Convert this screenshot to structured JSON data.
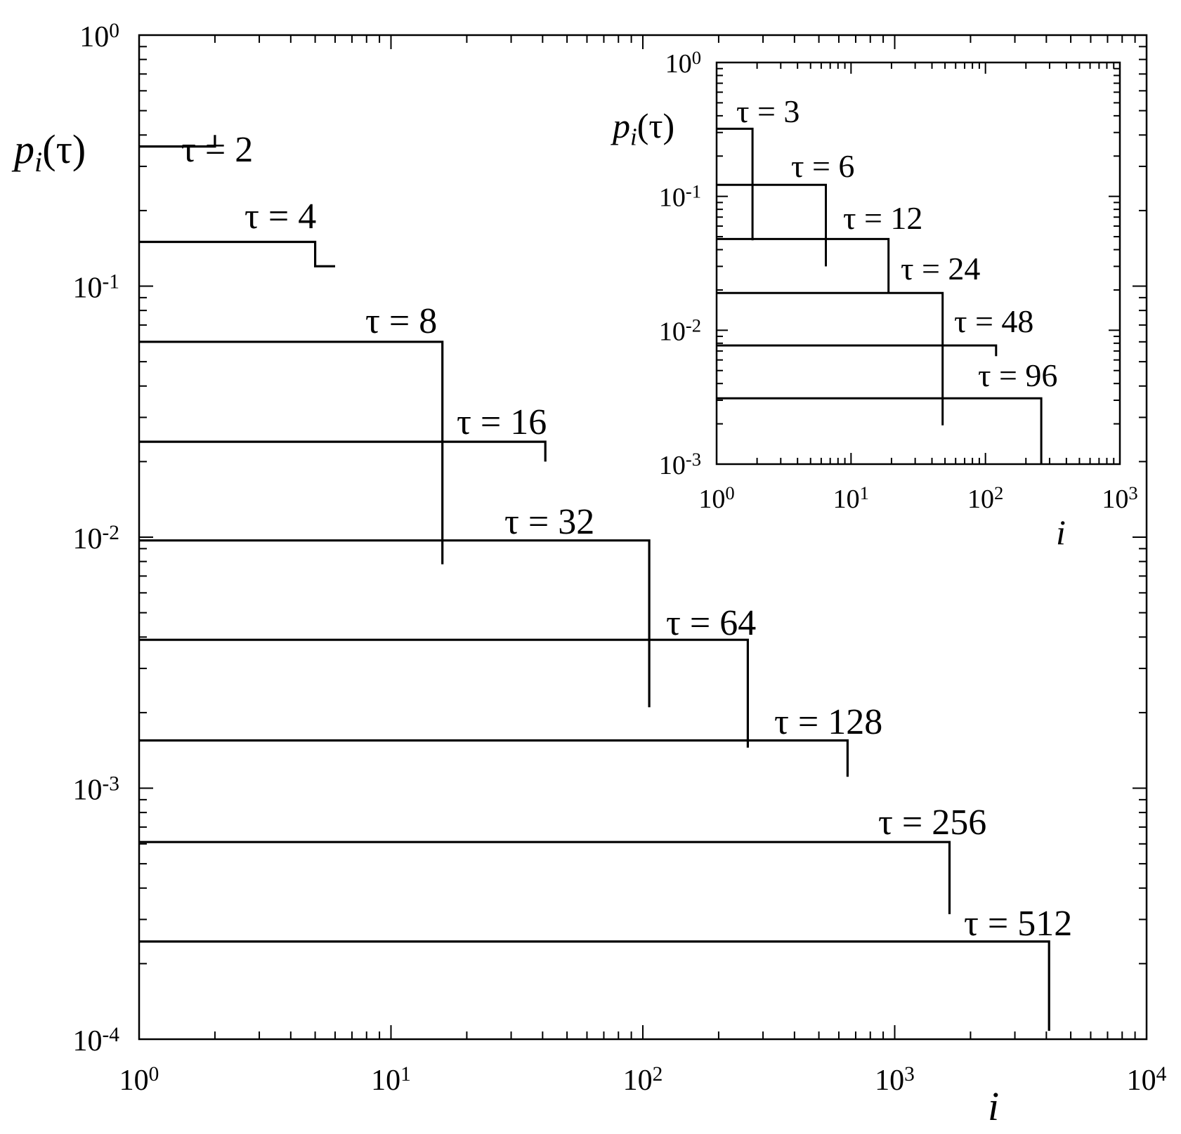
{
  "chart_data": [
    {
      "id": "main",
      "type": "line",
      "xscale": "log",
      "yscale": "log",
      "xlim": [
        1,
        10000
      ],
      "ylim": [
        0.0001,
        1
      ],
      "x_ticks": [
        {
          "base": "10",
          "exp": "0"
        },
        {
          "base": "10",
          "exp": "1"
        },
        {
          "base": "10",
          "exp": "2"
        },
        {
          "base": "10",
          "exp": "3"
        },
        {
          "base": "10",
          "exp": "4"
        }
      ],
      "y_ticks": [
        {
          "base": "10",
          "exp": "0"
        },
        {
          "base": "10",
          "exp": "-1"
        },
        {
          "base": "10",
          "exp": "-2"
        },
        {
          "base": "10",
          "exp": "-3"
        },
        {
          "base": "10",
          "exp": "-4"
        }
      ],
      "xlabel": "i",
      "ylabel": {
        "main": "p",
        "sub": "i",
        "tail": "(τ)"
      },
      "grid": false,
      "series": [
        {
          "label": "τ = 2",
          "points": [
            [
              1,
              0.36
            ],
            [
              2,
              0.36
            ]
          ],
          "drop_to": 0.4
        },
        {
          "label": "τ = 4",
          "points": [
            [
              1,
              0.15
            ],
            [
              5,
              0.15
            ],
            [
              5,
              0.12
            ],
            [
              6,
              0.12
            ]
          ]
        },
        {
          "label": "τ = 8",
          "points": [
            [
              1,
              0.06
            ],
            [
              16,
              0.06
            ]
          ],
          "drop_to": 0.0078
        },
        {
          "label": "τ = 16",
          "points": [
            [
              1,
              0.024
            ],
            [
              41,
              0.024
            ]
          ],
          "drop_to": 0.02
        },
        {
          "label": "τ = 32",
          "points": [
            [
              1,
              0.0097
            ],
            [
              106,
              0.0097
            ]
          ],
          "drop_to": 0.0021
        },
        {
          "label": "τ = 64",
          "points": [
            [
              1,
              0.0039
            ],
            [
              261,
              0.0039
            ]
          ],
          "drop_to": 0.00145
        },
        {
          "label": "τ = 128",
          "points": [
            [
              1,
              0.00155
            ],
            [
              650,
              0.00155
            ]
          ],
          "drop_to": 0.00111
        },
        {
          "label": "τ = 256",
          "points": [
            [
              1,
              0.00061
            ],
            [
              1650,
              0.00061
            ]
          ],
          "drop_to": 0.000315
        },
        {
          "label": "τ = 512",
          "points": [
            [
              1,
              0.000245
            ],
            [
              4100,
              0.000245
            ]
          ],
          "drop_to": 0.000108
        }
      ]
    },
    {
      "id": "inset",
      "type": "line",
      "xscale": "log",
      "yscale": "log",
      "xlim": [
        1,
        1000
      ],
      "ylim": [
        0.001,
        1
      ],
      "x_ticks": [
        {
          "base": "10",
          "exp": "0"
        },
        {
          "base": "10",
          "exp": "1"
        },
        {
          "base": "10",
          "exp": "2"
        },
        {
          "base": "10",
          "exp": "3"
        }
      ],
      "y_ticks": [
        {
          "base": "10",
          "exp": "0"
        },
        {
          "base": "10",
          "exp": "-1"
        },
        {
          "base": "10",
          "exp": "-2"
        },
        {
          "base": "10",
          "exp": "-3"
        }
      ],
      "xlabel": "i",
      "ylabel": {
        "main": "p",
        "sub": "i",
        "tail": "(τ)"
      },
      "grid": false,
      "series": [
        {
          "label": "τ = 3",
          "points": [
            [
              1,
              0.32
            ],
            [
              1.85,
              0.32
            ]
          ],
          "drop_to": 0.047
        },
        {
          "label": "τ = 6",
          "points": [
            [
              1,
              0.122
            ],
            [
              6.5,
              0.122
            ]
          ],
          "drop_to": 0.03
        },
        {
          "label": "τ = 12",
          "points": [
            [
              1,
              0.048
            ],
            [
              19,
              0.048
            ]
          ],
          "drop_to": 0.019
        },
        {
          "label": "τ = 24",
          "points": [
            [
              1,
              0.019
            ],
            [
              48,
              0.019
            ]
          ],
          "drop_to": 0.00195
        },
        {
          "label": "τ = 48",
          "points": [
            [
              1,
              0.0077
            ],
            [
              120,
              0.0077
            ]
          ],
          "drop_to": 0.0064
        },
        {
          "label": "τ = 96",
          "points": [
            [
              1,
              0.0031
            ],
            [
              260,
              0.0031
            ]
          ],
          "drop_to": 0.001
        }
      ]
    }
  ]
}
